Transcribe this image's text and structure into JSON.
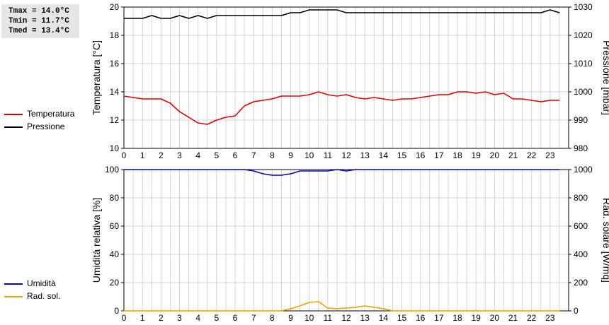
{
  "stats": {
    "tmax": "Tmax = 14.0°C",
    "tmin": "Tmin = 11.7°C",
    "tmed": "Tmed = 13.4°C"
  },
  "legend_top": [
    {
      "label": "Temperatura",
      "color": "#dd0000"
    },
    {
      "label": "Pressione",
      "color": "#000000"
    }
  ],
  "legend_bottom": [
    {
      "label": "Umidità",
      "color": "#0000bb"
    },
    {
      "label": "Rad. sol.",
      "color": "#f0a000"
    }
  ],
  "chart_data": [
    {
      "type": "line",
      "x_ticks": [
        "0",
        "1",
        "2",
        "3",
        "4",
        "5",
        "6",
        "7",
        "8",
        "9",
        "10",
        "11",
        "12",
        "13",
        "14",
        "15",
        "16",
        "17",
        "18",
        "19",
        "20",
        "21",
        "22",
        "23"
      ],
      "ylabel": "Temperatura [°C]",
      "ylabel_right": "Pressione [mbar]",
      "ylim": [
        10,
        20
      ],
      "ylim_right": [
        980,
        1030
      ],
      "y_ticks": [
        "10",
        "12",
        "14",
        "16",
        "18",
        "20"
      ],
      "y_ticks_right": [
        "980",
        "990",
        "1000",
        "1010",
        "1020",
        "1030"
      ],
      "grid": true,
      "series": [
        {
          "name": "Temperatura",
          "axis": "left",
          "color": "#dd0000",
          "x": [
            0,
            0.5,
            1,
            1.5,
            2,
            2.5,
            3,
            3.5,
            4,
            4.5,
            5,
            5.5,
            6,
            6.5,
            7,
            7.5,
            8,
            8.5,
            9,
            9.5,
            10,
            10.5,
            11,
            11.5,
            12,
            12.5,
            13,
            13.5,
            14,
            14.5,
            15,
            15.5,
            16,
            16.5,
            17,
            17.5,
            18,
            18.5,
            19,
            19.5,
            20,
            20.5,
            21,
            21.5,
            22,
            22.5,
            23,
            23.5
          ],
          "y": [
            13.7,
            13.6,
            13.5,
            13.5,
            13.5,
            13.2,
            12.6,
            12.2,
            11.8,
            11.7,
            12.0,
            12.2,
            12.3,
            13.0,
            13.3,
            13.4,
            13.5,
            13.7,
            13.7,
            13.7,
            13.8,
            14.0,
            13.8,
            13.7,
            13.8,
            13.6,
            13.5,
            13.6,
            13.5,
            13.4,
            13.5,
            13.5,
            13.6,
            13.7,
            13.8,
            13.8,
            14.0,
            14.0,
            13.9,
            14.0,
            13.8,
            13.9,
            13.5,
            13.5,
            13.4,
            13.3,
            13.4,
            13.4
          ]
        },
        {
          "name": "Pressione",
          "axis": "right",
          "color": "#000000",
          "x": [
            0,
            0.5,
            1,
            1.5,
            2,
            2.5,
            3,
            3.5,
            4,
            4.5,
            5,
            5.5,
            6,
            6.5,
            7,
            7.5,
            8,
            8.5,
            9,
            9.5,
            10,
            10.5,
            11,
            11.5,
            12,
            12.5,
            13,
            13.5,
            14,
            14.5,
            15,
            15.5,
            16,
            16.5,
            17,
            17.5,
            18,
            18.5,
            19,
            19.5,
            20,
            20.5,
            21,
            21.5,
            22,
            22.5,
            23,
            23.5
          ],
          "y": [
            1026,
            1026,
            1026,
            1027,
            1026,
            1026,
            1027,
            1026,
            1027,
            1026,
            1027,
            1027,
            1027,
            1027,
            1027,
            1027,
            1027,
            1027,
            1028,
            1028,
            1029,
            1029,
            1029,
            1029,
            1028,
            1028,
            1028,
            1028,
            1028,
            1028,
            1028,
            1028,
            1028,
            1028,
            1028,
            1028,
            1028,
            1028,
            1028,
            1028,
            1028,
            1028,
            1028,
            1028,
            1028,
            1028,
            1029,
            1028
          ]
        }
      ]
    },
    {
      "type": "line",
      "x_ticks": [
        "0",
        "1",
        "2",
        "3",
        "4",
        "5",
        "6",
        "7",
        "8",
        "9",
        "10",
        "11",
        "12",
        "13",
        "14",
        "15",
        "16",
        "17",
        "18",
        "19",
        "20",
        "21",
        "22",
        "23"
      ],
      "ylabel": "Umidità relativa [%]",
      "ylabel_right": "Rad. solare [W/mq]",
      "ylim": [
        0,
        100
      ],
      "ylim_right": [
        0,
        1000
      ],
      "y_ticks": [
        "0",
        "20",
        "40",
        "60",
        "80",
        "100"
      ],
      "y_ticks_right": [
        "0",
        "200",
        "400",
        "600",
        "800",
        "1000"
      ],
      "grid": true,
      "series": [
        {
          "name": "Umidità",
          "axis": "left",
          "color": "#0000bb",
          "x": [
            0,
            0.5,
            1,
            1.5,
            2,
            2.5,
            3,
            3.5,
            4,
            4.5,
            5,
            5.5,
            6,
            6.5,
            7,
            7.5,
            8,
            8.5,
            9,
            9.5,
            10,
            10.5,
            11,
            11.5,
            12,
            12.5,
            13,
            13.5,
            14,
            14.5,
            15,
            15.5,
            16,
            16.5,
            17,
            17.5,
            18,
            18.5,
            19,
            19.5,
            20,
            20.5,
            21,
            21.5,
            22,
            22.5,
            23,
            23.5
          ],
          "y": [
            100,
            100,
            100,
            100,
            100,
            100,
            100,
            100,
            100,
            100,
            100,
            100,
            100,
            100,
            99,
            97,
            96,
            96,
            97,
            99,
            99,
            99,
            99,
            100,
            99,
            100,
            100,
            100,
            100,
            100,
            100,
            100,
            100,
            100,
            100,
            100,
            100,
            100,
            100,
            100,
            100,
            100,
            100,
            100,
            100,
            100,
            100,
            100
          ]
        },
        {
          "name": "Rad. sol.",
          "axis": "right",
          "color": "#f0a000",
          "x": [
            0,
            0.5,
            1,
            1.5,
            2,
            2.5,
            3,
            3.5,
            4,
            4.5,
            5,
            5.5,
            6,
            6.5,
            7,
            7.5,
            8,
            8.5,
            9,
            9.5,
            10,
            10.5,
            11,
            11.5,
            12,
            12.5,
            13,
            13.5,
            14,
            14.5,
            15,
            15.5,
            16,
            16.5,
            17,
            17.5,
            18,
            18.5,
            19,
            19.5,
            20,
            20.5,
            21,
            21.5,
            22,
            22.5,
            23,
            23.5
          ],
          "y": [
            0,
            0,
            0,
            0,
            0,
            0,
            0,
            0,
            0,
            0,
            0,
            0,
            0,
            0,
            0,
            0,
            0,
            0,
            15,
            35,
            60,
            65,
            20,
            15,
            20,
            25,
            35,
            25,
            15,
            0,
            0,
            0,
            0,
            0,
            0,
            0,
            0,
            0,
            0,
            0,
            0,
            0,
            0,
            0,
            0,
            0,
            0,
            0
          ]
        }
      ]
    }
  ]
}
